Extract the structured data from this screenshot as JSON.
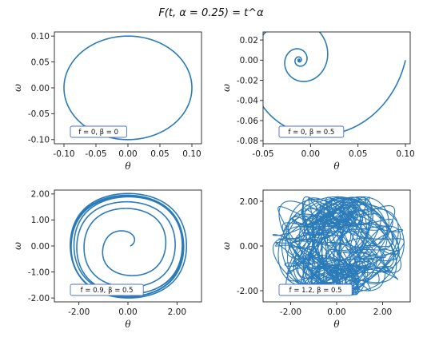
{
  "figure": {
    "title": "F(t, α = 0.25) = t^α",
    "line_color": "#2b7bb9"
  },
  "chart_data": [
    {
      "type": "line",
      "annotation": "f = 0, β = 0",
      "xlabel": "θ",
      "ylabel": "ω",
      "xlim": [
        -0.115,
        0.115
      ],
      "ylim": [
        -0.108,
        0.108
      ],
      "xticks": [
        -0.1,
        -0.05,
        0.0,
        0.05,
        0.1
      ],
      "xtick_labels": [
        "-0.10",
        "-0.05",
        "0.00",
        "0.05",
        "0.10"
      ],
      "yticks": [
        -0.1,
        -0.05,
        0.0,
        0.05,
        0.1
      ],
      "ytick_labels": [
        "-0.10",
        "-0.05",
        "0.00",
        "0.05",
        "0.10"
      ],
      "curve": "circle",
      "params": {
        "radius": 0.1
      }
    },
    {
      "type": "line",
      "annotation": "f = 0, β = 0.5",
      "xlabel": "θ",
      "ylabel": "ω",
      "xlim": [
        -0.05,
        0.105
      ],
      "ylim": [
        -0.083,
        0.028
      ],
      "xticks": [
        -0.05,
        0.0,
        0.05,
        0.1
      ],
      "xtick_labels": [
        "-0.05",
        "0.00",
        "0.05",
        "0.10"
      ],
      "yticks": [
        -0.08,
        -0.06,
        -0.04,
        -0.02,
        0.0,
        0.02
      ],
      "ytick_labels": [
        "-0.08",
        "-0.06",
        "-0.04",
        "-0.02",
        "0.00",
        "0.02"
      ],
      "curve": "damped_spiral",
      "params": {
        "start_theta": 0.1,
        "start_omega": 0.0,
        "end_theta": 0.0,
        "end_omega": 0.0
      }
    },
    {
      "type": "line",
      "annotation": "f = 0.9, β = 0.5",
      "xlabel": "θ",
      "ylabel": "ω",
      "xlim": [
        -3.0,
        3.0
      ],
      "ylim": [
        -2.15,
        2.15
      ],
      "xticks": [
        -2.0,
        0.0,
        2.0
      ],
      "xtick_labels": [
        "-2.00",
        "0.00",
        "2.00"
      ],
      "yticks": [
        -2.0,
        -1.0,
        0.0,
        1.0,
        2.0
      ],
      "ytick_labels": [
        "-2.00",
        "-1.00",
        "0.00",
        "1.00",
        "2.00"
      ],
      "curve": "spiral_to_limit_cycle",
      "params": {
        "start_theta": 0.1,
        "start_omega": 0.0,
        "cycle_theta_amplitude": 2.45,
        "cycle_omega_amplitude": 1.95
      }
    },
    {
      "type": "line",
      "annotation": "f = 1.2, β = 0.5",
      "xlabel": "θ",
      "ylabel": "ω",
      "xlim": [
        -3.2,
        3.2
      ],
      "ylim": [
        -2.5,
        2.5
      ],
      "xticks": [
        -2.0,
        0.0,
        2.0
      ],
      "xtick_labels": [
        "-2.00",
        "0.00",
        "2.00"
      ],
      "yticks": [
        -2.0,
        0.0,
        2.0
      ],
      "ytick_labels": [
        "-2.00",
        "0.00",
        "2.00"
      ],
      "curve": "chaotic",
      "params": {
        "theta_range": [
          -3.14,
          3.14
        ],
        "omega_range": [
          -2.3,
          2.3
        ]
      }
    }
  ]
}
